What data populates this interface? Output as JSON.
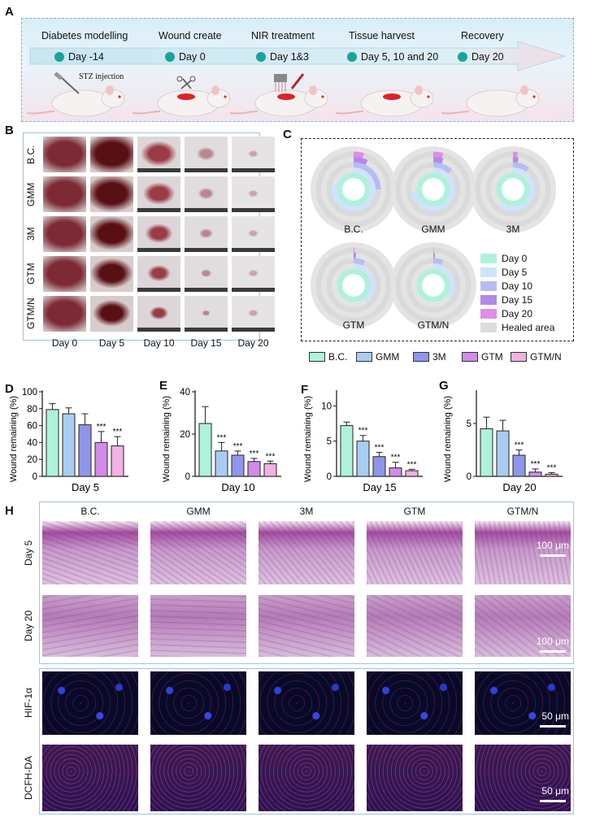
{
  "panels": {
    "a": "A",
    "b": "B",
    "c": "C",
    "d": "D",
    "e": "E",
    "f": "F",
    "g": "G",
    "h": "H"
  },
  "timeline": {
    "stages": [
      {
        "title": "Diabetes modelling",
        "day": "Day -14"
      },
      {
        "title": "Wound create",
        "day": "Day 0"
      },
      {
        "title": "NIR treatment",
        "day": "Day 1&3"
      },
      {
        "title": "Tissue harvest",
        "day": "Day 5, 10 and 20"
      },
      {
        "title": "Recovery",
        "day": "Day 20"
      }
    ],
    "injection_label": "STZ injection",
    "colors": {
      "dot": "#1aa39a",
      "arrow": "#cfe9f2",
      "wound": "#e0212a"
    }
  },
  "wound_photos": {
    "groups": [
      "B.C.",
      "GMM",
      "3M",
      "GTM",
      "GTM/N"
    ],
    "days": [
      "Day 0",
      "Day 5",
      "Day 10",
      "Day 15",
      "Day 20"
    ]
  },
  "rings": {
    "groups": [
      "B.C.",
      "GMM",
      "3M",
      "GTM",
      "GTM/N"
    ],
    "legend": [
      "Day 0",
      "Day 5",
      "Day 10",
      "Day 15",
      "Day 20",
      "Healed area"
    ],
    "legend_colors": [
      "#aef2dc",
      "#cfe3fb",
      "#b7bcf3",
      "#b388ea",
      "#e18ce6",
      "#dcdcdc"
    ],
    "wound_fraction": [
      [
        1.0,
        0.79,
        0.25,
        0.072,
        0.045
      ],
      [
        1.0,
        0.74,
        0.12,
        0.05,
        0.043
      ],
      [
        1.0,
        0.61,
        0.1,
        0.028,
        0.02
      ],
      [
        1.0,
        0.4,
        0.07,
        0.012,
        0.004
      ],
      [
        1.0,
        0.36,
        0.06,
        0.008,
        0.002
      ]
    ]
  },
  "group_legend": {
    "items": [
      "B.C.",
      "GMM",
      "3M",
      "GTM",
      "GTM/N"
    ],
    "colors": [
      "#aef2dc",
      "#a9cdf2",
      "#8f96ea",
      "#d38ae8",
      "#f2b0e3"
    ]
  },
  "chart_data": [
    {
      "type": "bar",
      "title": "Day 5",
      "ylabel": "Wound remaining (%)",
      "categories": [
        "B.C.",
        "GMM",
        "3M",
        "GTM",
        "GTM/N"
      ],
      "values": [
        79,
        74,
        61,
        40,
        36
      ],
      "errors": [
        7,
        7,
        13,
        13,
        11
      ],
      "ylim": [
        0,
        100
      ],
      "yticks": [
        0,
        20,
        40,
        60,
        80,
        100
      ],
      "yticklabels": [
        "0",
        "20",
        "40",
        "60",
        "80",
        "100"
      ],
      "annotations": [
        "",
        "",
        "",
        "***",
        "***"
      ]
    },
    {
      "type": "bar",
      "title": "Day 10",
      "ylabel": "Wound remaining (%)",
      "categories": [
        "B.C.",
        "GMM",
        "3M",
        "GTM",
        "GTM/N"
      ],
      "values": [
        25,
        12,
        10,
        7,
        6
      ],
      "errors": [
        8,
        4,
        2,
        1.5,
        1.2
      ],
      "ylim": [
        0,
        40
      ],
      "yticks": [
        0,
        20,
        40
      ],
      "yticklabels": [
        "0",
        "20",
        "40"
      ],
      "annotations": [
        "",
        "***",
        "***",
        "***",
        "***"
      ]
    },
    {
      "type": "bar",
      "title": "Day 15",
      "ylabel": "Wound remaining (%)",
      "categories": [
        "B.C.",
        "GMM",
        "3M",
        "GTM",
        "GTM/N"
      ],
      "values": [
        7.2,
        5.0,
        2.8,
        1.2,
        0.8
      ],
      "errors": [
        0.5,
        0.8,
        0.6,
        0.8,
        0.2
      ],
      "ylim": [
        0,
        12
      ],
      "yticks": [
        0,
        5,
        10
      ],
      "yticklabels": [
        "0",
        "5",
        "10"
      ],
      "annotations": [
        "",
        "***",
        "***",
        "***",
        "***"
      ]
    },
    {
      "type": "bar",
      "title": "Day 20",
      "ylabel": "Wound remaining (%)",
      "categories": [
        "B.C.",
        "GMM",
        "3M",
        "GTM",
        "GTM/N"
      ],
      "values": [
        4.5,
        4.3,
        2.0,
        0.4,
        0.2
      ],
      "errors": [
        1.1,
        1.0,
        0.5,
        0.3,
        0.15
      ],
      "ylim": [
        0,
        8
      ],
      "yticks": [
        0,
        5
      ],
      "yticklabels": [
        "0",
        "5"
      ],
      "annotations": [
        "",
        "",
        "***",
        "***",
        "***"
      ]
    }
  ],
  "histology": {
    "groups": [
      "B.C.",
      "GMM",
      "3M",
      "GTM",
      "GTM/N"
    ],
    "rows": [
      "Day 5",
      "Day 20",
      "HIF-1α",
      "DCFH-DA"
    ],
    "scale_100": "100 μm",
    "scale_50": "50 μm"
  }
}
